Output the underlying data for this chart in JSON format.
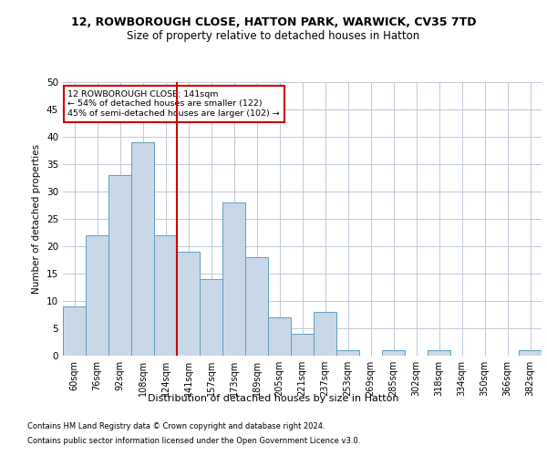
{
  "title_line1": "12, ROWBOROUGH CLOSE, HATTON PARK, WARWICK, CV35 7TD",
  "title_line2": "Size of property relative to detached houses in Hatton",
  "xlabel": "Distribution of detached houses by size in Hatton",
  "ylabel": "Number of detached properties",
  "footer_line1": "Contains HM Land Registry data © Crown copyright and database right 2024.",
  "footer_line2": "Contains public sector information licensed under the Open Government Licence v3.0.",
  "annotation_line1": "12 ROWBOROUGH CLOSE: 141sqm",
  "annotation_line2": "← 54% of detached houses are smaller (122)",
  "annotation_line3": "45% of semi-detached houses are larger (102) →",
  "bar_color": "#c8d8e8",
  "bar_edge_color": "#5f9ec0",
  "vline_color": "#cc0000",
  "annotation_box_color": "#cc0000",
  "categories": [
    "60sqm",
    "76sqm",
    "92sqm",
    "108sqm",
    "124sqm",
    "141sqm",
    "157sqm",
    "173sqm",
    "189sqm",
    "205sqm",
    "221sqm",
    "237sqm",
    "253sqm",
    "269sqm",
    "285sqm",
    "302sqm",
    "318sqm",
    "334sqm",
    "350sqm",
    "366sqm",
    "382sqm"
  ],
  "values": [
    9,
    22,
    33,
    39,
    22,
    19,
    14,
    28,
    18,
    7,
    4,
    8,
    1,
    0,
    1,
    0,
    1,
    0,
    0,
    0,
    1
  ],
  "ylim": [
    0,
    50
  ],
  "yticks": [
    0,
    5,
    10,
    15,
    20,
    25,
    30,
    35,
    40,
    45,
    50
  ],
  "background_color": "#ffffff",
  "grid_color": "#c0c8d8",
  "title1_fontsize": 9,
  "title2_fontsize": 8.5,
  "ylabel_fontsize": 7.5,
  "xlabel_fontsize": 8,
  "tick_fontsize": 7,
  "annotation_fontsize": 6.8,
  "footer_fontsize": 6
}
